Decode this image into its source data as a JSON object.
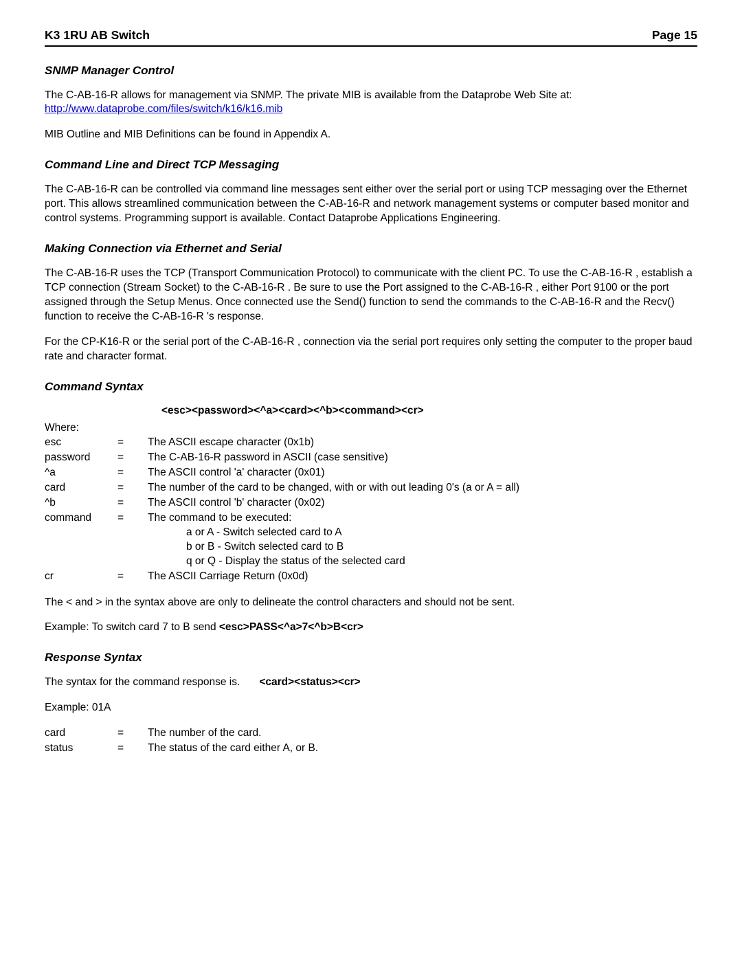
{
  "header": {
    "title": "K3 1RU AB Switch",
    "page": "Page 15"
  },
  "sections": {
    "snmp": {
      "heading": "SNMP Manager Control",
      "p1_a": "The C-AB-16-R  allows for management via SNMP.  The private MIB is available from the Dataprobe Web Site at:  ",
      "link_text": "http://www.dataprobe.com/files/switch/k16/k16.mib",
      "link_href": "http://www.dataprobe.com/files/switch/k16/k16.mib",
      "p2": "MIB Outline and MIB Definitions can be found in Appendix A."
    },
    "cli": {
      "heading": "Command Line and Direct TCP Messaging",
      "p1": "The C-AB-16-R  can be controlled via command line messages sent either over the serial port or using TCP messaging over the Ethernet port.  This allows streamlined communication between the C-AB-16-R and network management systems or computer based monitor and control systems.  Programming support is available.  Contact Dataprobe Applications Engineering."
    },
    "conn": {
      "heading": "Making Connection via Ethernet and Serial",
      "p1": "The C-AB-16-R   uses the TCP (Transport Communication Protocol) to communicate with the client PC.  To use the C-AB-16-R   , establish a TCP connection (Stream Socket) to the C-AB-16-R .  Be sure to use the Port assigned to the C-AB-16-R  , either Port 9100 or the port assigned through the Setup Menus.  Once connected use the Send() function to send the commands to the C-AB-16-R   and the Recv() function to receive the C-AB-16-R  's response.",
      "p2": "For the CP-K16-R or the serial port of the C-AB-16-R , connection via the serial port requires only setting the computer to the proper baud rate and character format."
    },
    "syntax": {
      "heading": "Command Syntax",
      "line": "<esc><password><^a><card><^b><command><cr>",
      "where": "Where:",
      "rows": [
        {
          "term": "esc",
          "desc": "The ASCII escape character (0x1b)"
        },
        {
          "term": "password",
          "desc": "The C-AB-16-R   password in ASCII (case sensitive)"
        },
        {
          "term": "^a",
          "desc": "The ASCII control 'a' character (0x01)"
        },
        {
          "term": "card",
          "desc": "The number of the card to be changed, with or with out leading 0's (a or A = all)"
        },
        {
          "term": "^b",
          "desc": "The ASCII control 'b' character (0x02)"
        },
        {
          "term": "command",
          "desc": "The command to be executed:"
        }
      ],
      "opts": {
        "a": "a or A - Switch selected card to A",
        "b": "b or B - Switch selected card to B",
        "q": "q or Q - Display the status of the selected card"
      },
      "cr_term": "cr",
      "cr_desc": "The ASCII Carriage Return (0x0d)",
      "note": "The < and > in the syntax above are only to delineate the control characters and should not be sent.",
      "example_label": "Example:  To switch card 7 to B send   ",
      "example_code": "<esc>PASS<^a>7<^b>B<cr>"
    },
    "resp": {
      "heading": "Response Syntax",
      "intro": "The syntax for the command response is.",
      "code": "<card><status><cr>",
      "example": "Example:  01A",
      "rows": [
        {
          "term": "card",
          "desc": "The number of the card."
        },
        {
          "term": "status",
          "desc": "The status of the card either A, or B."
        }
      ]
    }
  },
  "eq": "="
}
